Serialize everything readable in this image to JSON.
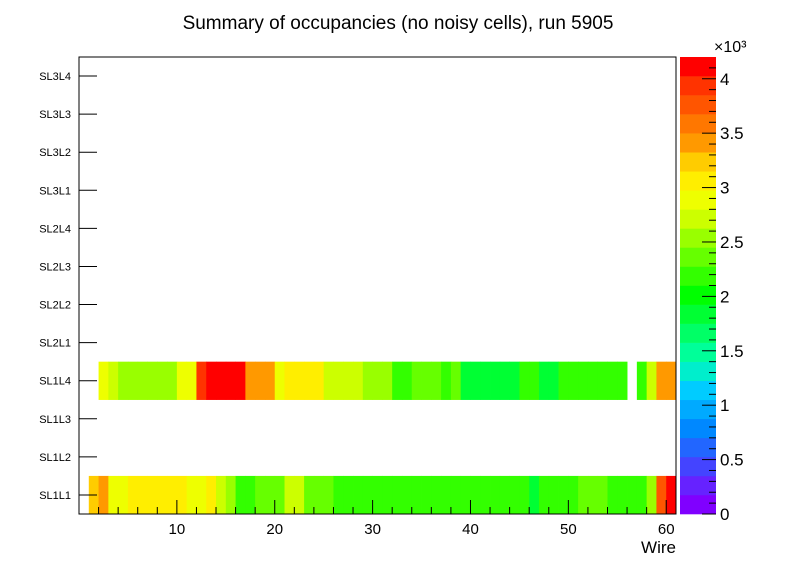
{
  "chart_data": {
    "type": "heatmap",
    "title": "Summary of occupancies (no noisy cells), run 5905",
    "xlabel": "Wire",
    "ylabel": "",
    "xlim": [
      0,
      61
    ],
    "x_ticks": [
      10,
      20,
      30,
      40,
      50,
      60
    ],
    "x_tick_labels": [
      "10",
      "20",
      "30",
      "40",
      "50",
      "60"
    ],
    "y_categories": [
      "SL1L1",
      "SL1L2",
      "SL1L3",
      "SL1L4",
      "SL2L1",
      "SL2L2",
      "SL2L3",
      "SL2L4",
      "SL3L1",
      "SL3L2",
      "SL3L3",
      "SL3L4"
    ],
    "zlim": [
      0,
      4200
    ],
    "z_multiplier_label": "×10³",
    "z_ticks": [
      0,
      500,
      1000,
      1500,
      2000,
      2500,
      3000,
      3500,
      4000
    ],
    "z_tick_labels": [
      "0",
      "0.5",
      "1",
      "1.5",
      "2",
      "2.5",
      "3",
      "3.5",
      "4"
    ],
    "palette": [
      "#8000ff",
      "#6622ff",
      "#4444ff",
      "#2266ff",
      "#0088ff",
      "#00aaff",
      "#00ccff",
      "#00eecc",
      "#00ff99",
      "#00ff66",
      "#00ff33",
      "#00ff00",
      "#33ff00",
      "#66ff00",
      "#99ff00",
      "#ccff00",
      "#eeff00",
      "#ffee00",
      "#ffcc00",
      "#ff9900",
      "#ff7700",
      "#ff5500",
      "#ff3300",
      "#ff0000"
    ],
    "series": [
      {
        "name": "SL1L1",
        "values": [
          3200,
          3400,
          2900,
          2900,
          3000,
          3000,
          3050,
          3050,
          3050,
          3050,
          2900,
          2800,
          3000,
          2700,
          2550,
          2200,
          2200,
          2400,
          2400,
          2400,
          2650,
          2650,
          2400,
          2400,
          2300,
          2250,
          2100,
          2250,
          2250,
          2200,
          2200,
          2200,
          2250,
          2250,
          2150,
          2150,
          2250,
          2200,
          2200,
          2200,
          2200,
          2200,
          2200,
          2200,
          2200,
          1900,
          2100,
          2100,
          2100,
          2100,
          2400,
          2400,
          2300,
          2200,
          2200,
          2200,
          2200,
          2500,
          3800,
          4050
        ]
      },
      {
        "name": "SL1L4",
        "values": [
          null,
          2900,
          2650,
          2550,
          2550,
          2500,
          2500,
          2500,
          2500,
          2900,
          2900,
          3900,
          4100,
          4100,
          4100,
          4100,
          3350,
          3350,
          3350,
          2900,
          3100,
          3100,
          3100,
          3100,
          2750,
          2750,
          2750,
          2750,
          2450,
          2450,
          2550,
          2200,
          2200,
          2400,
          2300,
          2350,
          2250,
          2400,
          1900,
          1900,
          1900,
          1900,
          1900,
          1900,
          2200,
          2200,
          1900,
          1900,
          2250,
          2200,
          2200,
          2200,
          2200,
          2200,
          2200,
          null,
          2200,
          2650,
          3450,
          3450
        ]
      }
    ]
  }
}
